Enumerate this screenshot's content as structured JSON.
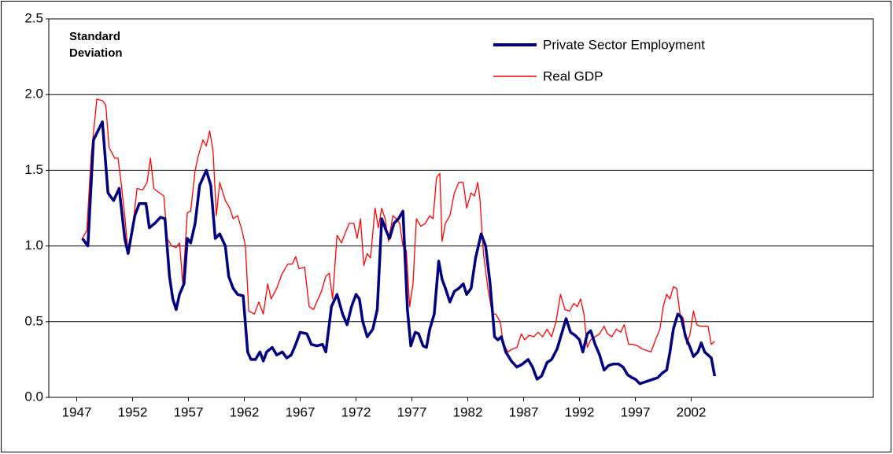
{
  "chart_data": {
    "type": "line",
    "annotation": "Standard Deviation",
    "xlim": [
      1944.5,
      2018.3
    ],
    "xticks": [
      1947,
      1952,
      1957,
      1962,
      1967,
      1972,
      1977,
      1982,
      1987,
      1992,
      1997,
      2002
    ],
    "ylim": [
      0,
      2.5
    ],
    "yticks": [
      {
        "value": 0,
        "label": "0.0"
      },
      0.5,
      {
        "value": 1,
        "label": "1.0"
      },
      1.5,
      {
        "value": 2,
        "label": "2.0"
      },
      2.5
    ],
    "grid": true,
    "legend": "top-right",
    "series": [
      {
        "name": "Private Sector Employment",
        "color": "#000080",
        "x": [
          1947.5,
          1948.0,
          1948.5,
          1949.3,
          1949.8,
          1950.3,
          1950.8,
          1951.3,
          1951.6,
          1952.2,
          1952.6,
          1953.2,
          1953.5,
          1954.0,
          1954.5,
          1954.9,
          1955.3,
          1955.6,
          1955.9,
          1956.2,
          1956.6,
          1956.9,
          1957.2,
          1957.6,
          1958.0,
          1958.6,
          1959.0,
          1959.4,
          1959.8,
          1960.3,
          1960.6,
          1961.0,
          1961.4,
          1961.9,
          1962.3,
          1962.6,
          1963.0,
          1963.4,
          1963.7,
          1964.0,
          1964.5,
          1964.9,
          1965.4,
          1965.8,
          1966.2,
          1966.6,
          1967.0,
          1967.6,
          1968.0,
          1968.5,
          1969.0,
          1969.3,
          1969.8,
          1970.3,
          1970.8,
          1971.2,
          1971.6,
          1972.0,
          1972.3,
          1972.6,
          1973.0,
          1973.5,
          1973.9,
          1974.3,
          1974.7,
          1975.0,
          1975.4,
          1975.8,
          1976.2,
          1976.6,
          1976.9,
          1977.3,
          1977.6,
          1978.0,
          1978.3,
          1978.6,
          1979.0,
          1979.4,
          1979.7,
          1980.0,
          1980.4,
          1980.8,
          1981.2,
          1981.6,
          1981.9,
          1982.3,
          1982.7,
          1983.2,
          1983.6,
          1984.0,
          1984.4,
          1984.7,
          1985.0,
          1985.4,
          1985.9,
          1986.4,
          1986.9,
          1987.4,
          1987.8,
          1988.2,
          1988.6,
          1989.1,
          1989.5,
          1990.0,
          1990.4,
          1990.8,
          1991.2,
          1991.6,
          1992.0,
          1992.3,
          1992.7,
          1993.0,
          1993.4,
          1993.8,
          1994.2,
          1994.6,
          1995.0,
          1995.5,
          1995.9,
          1996.3,
          1996.7,
          1997.0,
          1997.4,
          1997.8,
          1998.2,
          1998.6,
          1999.0,
          1999.4,
          1999.8,
          2000.1,
          2000.4,
          2000.8,
          2001.1,
          2001.5,
          2001.9,
          2002.2,
          2002.6,
          2002.9,
          2003.2,
          2003.5,
          2003.8,
          2004.1
        ],
        "values": [
          1.05,
          1.0,
          1.7,
          1.82,
          1.35,
          1.3,
          1.38,
          1.05,
          0.95,
          1.2,
          1.28,
          1.28,
          1.12,
          1.15,
          1.19,
          1.18,
          0.8,
          0.65,
          0.58,
          0.68,
          0.75,
          1.05,
          1.02,
          1.15,
          1.4,
          1.5,
          1.4,
          1.05,
          1.08,
          1.0,
          0.8,
          0.72,
          0.68,
          0.67,
          0.3,
          0.25,
          0.25,
          0.3,
          0.24,
          0.3,
          0.33,
          0.28,
          0.3,
          0.26,
          0.28,
          0.35,
          0.43,
          0.42,
          0.35,
          0.34,
          0.35,
          0.3,
          0.6,
          0.68,
          0.55,
          0.48,
          0.6,
          0.68,
          0.65,
          0.5,
          0.4,
          0.45,
          0.58,
          1.18,
          1.1,
          1.05,
          1.15,
          1.18,
          1.23,
          0.58,
          0.34,
          0.43,
          0.42,
          0.34,
          0.33,
          0.45,
          0.55,
          0.9,
          0.78,
          0.72,
          0.63,
          0.7,
          0.72,
          0.75,
          0.68,
          0.72,
          0.92,
          1.08,
          1.0,
          0.75,
          0.4,
          0.38,
          0.4,
          0.3,
          0.24,
          0.2,
          0.22,
          0.25,
          0.2,
          0.12,
          0.14,
          0.23,
          0.25,
          0.32,
          0.42,
          0.52,
          0.43,
          0.41,
          0.38,
          0.3,
          0.42,
          0.44,
          0.35,
          0.28,
          0.18,
          0.21,
          0.22,
          0.22,
          0.2,
          0.15,
          0.13,
          0.12,
          0.09,
          0.1,
          0.11,
          0.12,
          0.13,
          0.16,
          0.18,
          0.3,
          0.45,
          0.55,
          0.53,
          0.4,
          0.33,
          0.27,
          0.3,
          0.36,
          0.3,
          0.28,
          0.26,
          0.14
        ]
      },
      {
        "name": "Real GDP",
        "color": "#ff0000",
        "x": [
          1947.5,
          1947.9,
          1948.3,
          1948.8,
          1949.3,
          1949.6,
          1949.9,
          1950.4,
          1950.7,
          1951.0,
          1951.3,
          1951.6,
          1951.9,
          1952.4,
          1952.9,
          1953.3,
          1953.6,
          1953.9,
          1954.4,
          1954.8,
          1955.1,
          1955.5,
          1955.9,
          1956.2,
          1956.5,
          1956.9,
          1957.2,
          1957.6,
          1957.9,
          1958.3,
          1958.6,
          1958.9,
          1959.2,
          1959.5,
          1959.8,
          1960.3,
          1960.7,
          1961.0,
          1961.4,
          1961.8,
          1962.1,
          1962.4,
          1962.9,
          1963.3,
          1963.7,
          1964.1,
          1964.4,
          1964.9,
          1965.4,
          1965.9,
          1966.3,
          1966.6,
          1966.9,
          1967.4,
          1967.8,
          1968.2,
          1968.6,
          1968.9,
          1969.3,
          1969.6,
          1969.9,
          1970.3,
          1970.7,
          1971.0,
          1971.4,
          1971.8,
          1972.1,
          1972.4,
          1972.7,
          1973.0,
          1973.3,
          1973.7,
          1974.0,
          1974.3,
          1974.6,
          1974.9,
          1975.3,
          1975.6,
          1975.9,
          1976.2,
          1976.5,
          1976.8,
          1977.1,
          1977.4,
          1977.8,
          1978.2,
          1978.6,
          1978.9,
          1979.2,
          1979.5,
          1979.7,
          1980.0,
          1980.4,
          1980.8,
          1981.2,
          1981.6,
          1981.9,
          1982.3,
          1982.6,
          1982.9,
          1983.1,
          1983.4,
          1983.8,
          1984.2,
          1984.5,
          1984.9,
          1985.2,
          1985.6,
          1986.0,
          1986.4,
          1986.8,
          1987.1,
          1987.5,
          1987.9,
          1988.3,
          1988.7,
          1989.1,
          1989.5,
          1989.9,
          1990.3,
          1990.7,
          1991.1,
          1991.5,
          1991.8,
          1992.1,
          1992.4,
          1992.7,
          1993.0,
          1993.4,
          1993.8,
          1994.2,
          1994.5,
          1994.9,
          1995.3,
          1995.7,
          1996.0,
          1996.4,
          1996.8,
          1997.2,
          1997.6,
          1998.0,
          1998.4,
          1998.8,
          1999.2,
          1999.5,
          1999.8,
          2000.1,
          2000.4,
          2000.7,
          2001.0,
          2001.3,
          2001.6,
          2001.9,
          2002.2,
          2002.5,
          2002.8,
          2003.2,
          2003.5,
          2003.8,
          2004.1
        ],
        "values": [
          1.05,
          1.1,
          1.6,
          1.97,
          1.96,
          1.93,
          1.65,
          1.58,
          1.58,
          1.4,
          1.2,
          0.95,
          1.05,
          1.38,
          1.37,
          1.42,
          1.58,
          1.38,
          1.35,
          1.33,
          1.05,
          1.0,
          0.99,
          1.02,
          0.75,
          1.22,
          1.23,
          1.5,
          1.6,
          1.7,
          1.66,
          1.76,
          1.63,
          1.2,
          1.42,
          1.3,
          1.25,
          1.18,
          1.2,
          1.1,
          1.0,
          0.57,
          0.55,
          0.63,
          0.55,
          0.75,
          0.65,
          0.72,
          0.82,
          0.88,
          0.88,
          0.93,
          0.85,
          0.86,
          0.6,
          0.58,
          0.65,
          0.7,
          0.8,
          0.82,
          0.65,
          1.07,
          1.02,
          1.08,
          1.15,
          1.15,
          1.05,
          1.18,
          0.87,
          0.95,
          0.92,
          1.25,
          1.12,
          1.25,
          1.18,
          1.03,
          1.2,
          1.18,
          1.15,
          1.0,
          0.97,
          0.6,
          0.75,
          1.18,
          1.13,
          1.15,
          1.2,
          1.18,
          1.45,
          1.48,
          1.03,
          1.15,
          1.2,
          1.35,
          1.42,
          1.42,
          1.25,
          1.35,
          1.33,
          1.42,
          1.3,
          0.95,
          0.72,
          0.55,
          0.55,
          0.5,
          0.35,
          0.3,
          0.32,
          0.33,
          0.42,
          0.38,
          0.41,
          0.4,
          0.43,
          0.4,
          0.45,
          0.4,
          0.5,
          0.68,
          0.58,
          0.57,
          0.62,
          0.6,
          0.65,
          0.55,
          0.33,
          0.38,
          0.4,
          0.42,
          0.47,
          0.42,
          0.4,
          0.45,
          0.43,
          0.48,
          0.35,
          0.35,
          0.34,
          0.32,
          0.31,
          0.3,
          0.38,
          0.45,
          0.6,
          0.68,
          0.65,
          0.73,
          0.72,
          0.55,
          0.52,
          0.35,
          0.42,
          0.57,
          0.48,
          0.47,
          0.47,
          0.47,
          0.35,
          0.37
        ]
      }
    ]
  }
}
